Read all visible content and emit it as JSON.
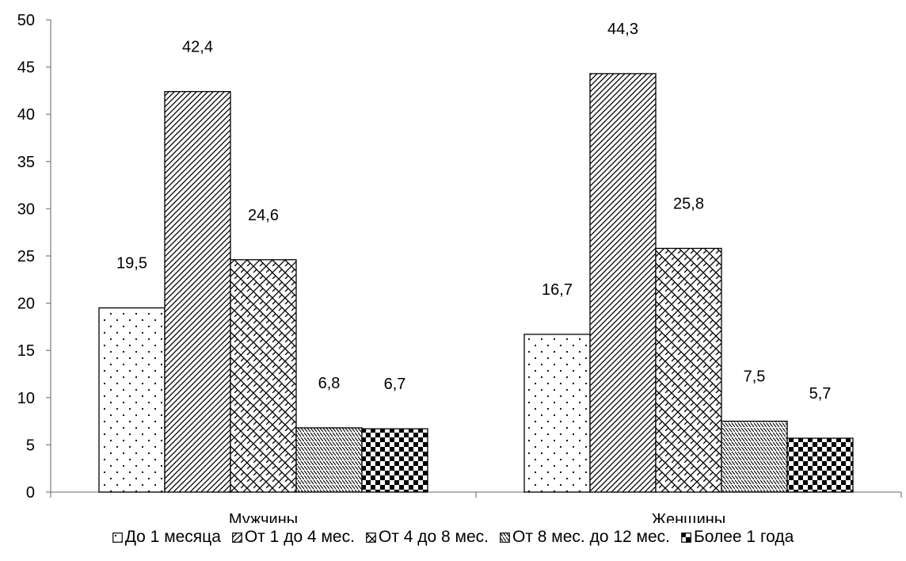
{
  "chart_data": {
    "type": "bar",
    "title": "",
    "xlabel": "",
    "ylabel": "",
    "ylim": [
      0,
      50
    ],
    "yticks": [
      0,
      5,
      10,
      15,
      20,
      25,
      30,
      35,
      40,
      45,
      50
    ],
    "categories": [
      "Мужчины",
      "Женщины"
    ],
    "series": [
      {
        "name": "До 1 месяца",
        "values": [
          19.5,
          16.7
        ],
        "labels": [
          "19,5",
          "16,7"
        ],
        "pattern": "dots"
      },
      {
        "name": "От 1 до 4 мес.",
        "values": [
          42.4,
          44.3
        ],
        "labels": [
          "42,4",
          "44,3"
        ],
        "pattern": "diagonal"
      },
      {
        "name": "От 4 до 8 мес.",
        "values": [
          24.6,
          25.8
        ],
        "labels": [
          "24,6",
          "25,8"
        ],
        "pattern": "brick"
      },
      {
        "name": "От 8 мес. до 12 мес.",
        "values": [
          6.8,
          7.5
        ],
        "labels": [
          "6,8",
          "7,5"
        ],
        "pattern": "hatch"
      },
      {
        "name": "Более 1 года",
        "values": [
          6.7,
          5.7
        ],
        "labels": [
          "6,7",
          "5,7"
        ],
        "pattern": "checker"
      }
    ],
    "grid": false,
    "legend_position": "bottom"
  }
}
